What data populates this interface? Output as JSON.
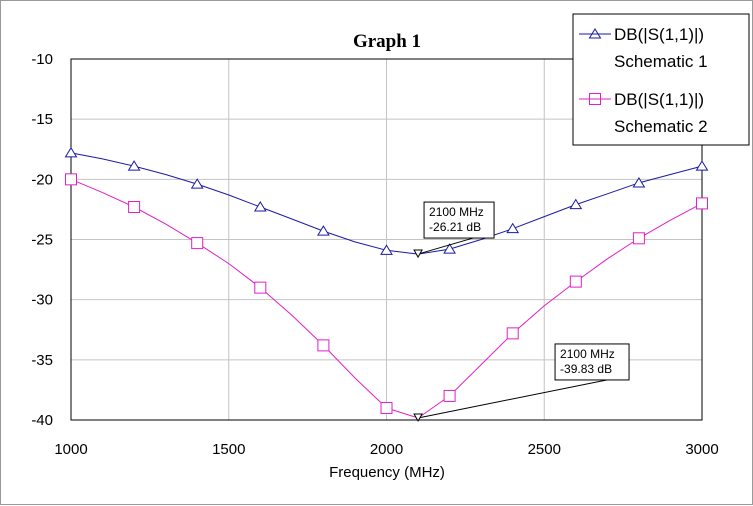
{
  "window": {
    "title": "Graph 1"
  },
  "chart_data": {
    "type": "line",
    "title": "Graph 1",
    "xlabel": "Frequency (MHz)",
    "ylabel": "",
    "xlim": [
      1000,
      3000
    ],
    "ylim": [
      -40,
      -10
    ],
    "xticks": [
      1000,
      1500,
      2000,
      2500,
      3000
    ],
    "yticks": [
      -10,
      -15,
      -20,
      -25,
      -30,
      -35,
      -40
    ],
    "grid": true,
    "legend_position": "top-right",
    "series": [
      {
        "name": "DB(|S(1,1)|)",
        "source": "Schematic 1",
        "color": "#1a1aa6",
        "marker": "triangle",
        "x": [
          1000,
          1100,
          1200,
          1300,
          1400,
          1500,
          1600,
          1700,
          1800,
          1900,
          2000,
          2100,
          2200,
          2300,
          2400,
          2500,
          2600,
          2700,
          2800,
          2900,
          3000
        ],
        "y": [
          -17.8,
          -18.3,
          -18.9,
          -19.6,
          -20.4,
          -21.3,
          -22.3,
          -23.3,
          -24.3,
          -25.2,
          -25.9,
          -26.21,
          -25.8,
          -25.0,
          -24.1,
          -23.1,
          -22.1,
          -21.2,
          -20.3,
          -19.6,
          -18.9
        ],
        "marker_x": [
          1000,
          1200,
          1400,
          1600,
          1800,
          2000,
          2200,
          2400,
          2600,
          2800,
          3000
        ],
        "marker_y": [
          -17.8,
          -18.9,
          -20.4,
          -22.3,
          -24.3,
          -25.9,
          -25.8,
          -24.1,
          -22.1,
          -20.3,
          -18.9
        ]
      },
      {
        "name": "DB(|S(1,1)|)",
        "source": "Schematic 2",
        "color": "#e020c8",
        "marker": "square",
        "x": [
          1000,
          1100,
          1200,
          1300,
          1400,
          1500,
          1600,
          1700,
          1800,
          1900,
          2000,
          2100,
          2200,
          2300,
          2400,
          2500,
          2600,
          2700,
          2800,
          2900,
          3000
        ],
        "y": [
          -20.0,
          -21.1,
          -22.3,
          -23.7,
          -25.3,
          -27.0,
          -29.0,
          -31.3,
          -33.8,
          -36.5,
          -39.0,
          -39.83,
          -38.0,
          -35.4,
          -32.8,
          -30.5,
          -28.5,
          -26.6,
          -24.9,
          -23.4,
          -22.0
        ],
        "marker_x": [
          1000,
          1200,
          1400,
          1600,
          1800,
          2000,
          2200,
          2400,
          2600,
          2800,
          3000
        ],
        "marker_y": [
          -20.0,
          -22.3,
          -25.3,
          -29.0,
          -33.8,
          -39.0,
          -38.0,
          -32.8,
          -28.5,
          -24.9,
          -22.0
        ]
      }
    ],
    "markers": [
      {
        "series": 0,
        "x": 2100,
        "y": -26.21,
        "lines": [
          "2100 MHz",
          "-26.21 dB"
        ]
      },
      {
        "series": 1,
        "x": 2100,
        "y": -39.83,
        "lines": [
          "2100 MHz",
          "-39.83 dB"
        ]
      }
    ]
  }
}
